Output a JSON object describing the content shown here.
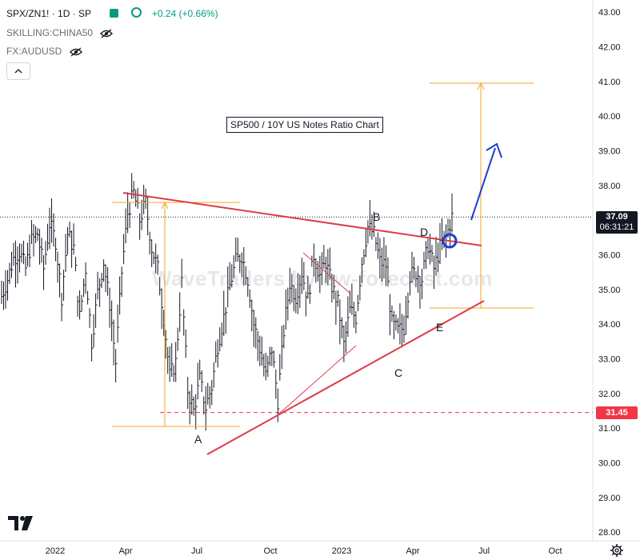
{
  "header": {
    "symbol": "SPX/ZN1! · 1D · SP",
    "change": "+0.24 (+0.66%)",
    "overlay1": "SKILLING:CHINA50",
    "overlay2": "FX:AUDUSD"
  },
  "annotations": {
    "title": "SP500 / 10Y US Notes Ratio Chart",
    "watermark": "WaveTraders by ew-forecast.com",
    "waves": {
      "A": "A",
      "B": "B",
      "C": "C",
      "D": "D",
      "E": "E"
    }
  },
  "price_tags": {
    "last": "37.09",
    "countdown": "06:31:21",
    "level": "31.45"
  },
  "colors": {
    "bullish": "#089981",
    "last_tag": "#131722",
    "level_tag": "#f23645",
    "trendline": "#dd3b4a",
    "projection": "#f5a623",
    "arrow": "#1e3fd0"
  },
  "chart_data": {
    "type": "line",
    "series": [
      {
        "values": [
          34.8,
          35.3,
          35.9,
          36.1,
          35.6,
          36.4,
          36.6,
          35.6,
          36.9,
          36.4,
          34.8,
          36.6,
          36.2,
          34.2,
          35.6,
          33.5,
          34.9,
          35.8,
          34.6,
          32.9,
          35.5,
          37.2,
          37.8,
          37.0,
          37.5,
          36.2,
          35.6,
          34.2,
          32.5,
          32.9,
          35.2,
          32.1,
          31.5,
          32.4,
          31.6,
          32.2,
          33.4,
          34.2,
          35.1,
          35.8,
          36.0,
          35.3,
          34.0,
          33.3,
          32.5,
          33.3,
          31.8,
          33.8,
          35.2,
          34.8,
          35.5,
          34.7,
          36.0,
          35.4,
          35.8,
          35.1,
          34.6,
          33.4,
          34.4,
          34.2,
          35.8,
          36.8,
          36.6,
          35.8,
          35.7,
          34.0,
          33.8,
          33.9,
          35.4,
          35.5,
          35.3,
          36.3,
          35.6,
          36.2,
          36.5,
          37.09
        ]
      }
    ],
    "y_ticks": [
      "43.00",
      "42.00",
      "41.00",
      "40.00",
      "39.00",
      "38.00",
      "37.00",
      "36.00",
      "35.00",
      "34.00",
      "33.00",
      "32.00",
      "31.00",
      "30.00",
      "29.00",
      "28.00"
    ],
    "x_ticks": [
      "2022",
      "Apr",
      "Jul",
      "Oct",
      "2023",
      "Apr",
      "Jul",
      "Oct"
    ],
    "ylim": [
      27.75,
      43.35
    ],
    "x_range": [
      "2021-11-01",
      "2023-11-30"
    ],
    "last_value": 37.09,
    "horizontal_level": 31.45,
    "trendlines": [
      {
        "from": [
          "2022-03-28",
          38.15
        ],
        "to": [
          "2023-06-30",
          36.55
        ]
      },
      {
        "from": [
          "2022-07-08",
          30.4
        ],
        "to": [
          "2023-06-30",
          34.95
        ]
      }
    ],
    "projection": {
      "top": 41.45,
      "bottom": 34.75,
      "date": "2023-06-26"
    },
    "first_leg": {
      "top": 37.95,
      "bottom": 31.2,
      "date": "2022-05-22"
    }
  }
}
